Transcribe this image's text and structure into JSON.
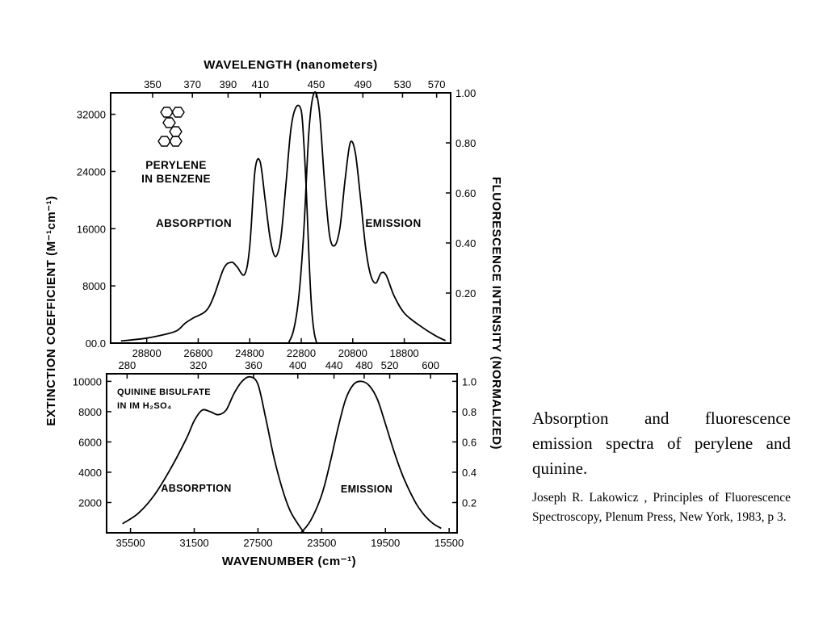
{
  "caption": {
    "text": "Absorption and fluorescence emission spectra of perylene and quinine.",
    "citation": "Joseph R. Lakowicz , Principles of Fluorescence Spectroscopy, Plenum Press, New York, 1983, p 3."
  },
  "figure": {
    "left_axis_title": "EXTINCTION COEFFICIENT (M⁻¹cm⁻¹)",
    "right_axis_title": "FLUORESCENCE INTENSITY (NORMALIZED)",
    "top_axis_title": "WAVELENGTH (nanometers)",
    "bottom_axis_title": "WAVENUMBER (cm⁻¹)"
  },
  "chart_data": [
    {
      "id": "perylene",
      "type": "line",
      "label_lines": [
        "PERYLENE",
        "IN BENZENE"
      ],
      "molecule_icon": "perylene-structure-icon",
      "x_unit": "wavenumber (cm-1)",
      "xlim": [
        30200,
        17000
      ],
      "x_reversed": true,
      "x_ticks": [
        "28800",
        "26800",
        "24800",
        "22800",
        "20800",
        "18800"
      ],
      "ylim": [
        0,
        35000
      ],
      "y_ticks": [
        "00.0",
        "8000",
        "16000",
        "24000",
        "32000"
      ],
      "y2lim": [
        0,
        1.0
      ],
      "y2_ticks": [
        "0.20",
        "0.40",
        "0.60",
        "0.80",
        "1.00"
      ],
      "wavelength_ticks": [
        "350",
        "370",
        "390",
        "410",
        "450",
        "490",
        "530",
        "570"
      ],
      "series": [
        {
          "name": "ABSORPTION",
          "axis": "left",
          "x": [
            29800,
            28800,
            28000,
            27600,
            27300,
            27000,
            26500,
            26200,
            25800,
            25500,
            25300,
            25000,
            24800,
            24600,
            24400,
            24200,
            24000,
            23800,
            23600,
            23400,
            23200,
            23000,
            22800,
            22700,
            22600,
            22500,
            22400,
            22300,
            22200
          ],
          "y": [
            300,
            700,
            1300,
            1800,
            2800,
            3500,
            4500,
            6500,
            10500,
            11300,
            10700,
            9600,
            13500,
            24000,
            25400,
            20000,
            14500,
            12100,
            14500,
            22000,
            30000,
            33000,
            32500,
            28000,
            21000,
            12000,
            5000,
            1500,
            0
          ]
        },
        {
          "name": "EMISSION",
          "axis": "right",
          "x": [
            23300,
            23100,
            22900,
            22700,
            22500,
            22300,
            22100,
            21900,
            21700,
            21500,
            21300,
            21100,
            20900,
            20700,
            20500,
            20300,
            20100,
            19900,
            19700,
            19500,
            19200,
            18800,
            18200,
            17600,
            17200
          ],
          "y": [
            0,
            0.05,
            0.18,
            0.45,
            0.85,
            1.0,
            0.93,
            0.65,
            0.43,
            0.39,
            0.46,
            0.65,
            0.8,
            0.76,
            0.58,
            0.38,
            0.27,
            0.24,
            0.28,
            0.27,
            0.19,
            0.12,
            0.07,
            0.03,
            0.01
          ]
        }
      ]
    },
    {
      "id": "quinine",
      "type": "line",
      "label_lines": [
        "QUININE BISULFATE",
        "IN IM H₂SO₄"
      ],
      "x_unit": "wavenumber (cm-1)",
      "xlim": [
        37000,
        15000
      ],
      "x_reversed": true,
      "x_ticks": [
        "35500",
        "31500",
        "27500",
        "23500",
        "19500",
        "15500"
      ],
      "ylim": [
        0,
        10500
      ],
      "y_ticks": [
        "2000",
        "4000",
        "6000",
        "8000",
        "10000"
      ],
      "y2lim": [
        0,
        1.05
      ],
      "y2_ticks": [
        "0.2",
        "0.4",
        "0.6",
        "0.8",
        "1.0"
      ],
      "wavelength_ticks": [
        "280",
        "320",
        "360",
        "400",
        "440",
        "480",
        "520",
        "600"
      ],
      "series": [
        {
          "name": "ABSORPTION",
          "axis": "left",
          "x": [
            36000,
            35000,
            34000,
            33000,
            32000,
            31500,
            31000,
            30500,
            30000,
            29500,
            29000,
            28500,
            28000,
            27500,
            27000,
            26500,
            26000,
            25500,
            25000,
            24600
          ],
          "y": [
            600,
            1300,
            2500,
            4200,
            6200,
            7400,
            8100,
            8000,
            7800,
            8100,
            9200,
            10000,
            10300,
            9800,
            7500,
            5000,
            3000,
            1500,
            600,
            0
          ]
        },
        {
          "name": "EMISSION",
          "axis": "right",
          "x": [
            24800,
            24200,
            23500,
            23000,
            22500,
            22000,
            21500,
            21000,
            20500,
            20000,
            19500,
            19000,
            18500,
            18000,
            17500,
            17000,
            16500,
            16000
          ],
          "y": [
            0,
            0.08,
            0.25,
            0.45,
            0.68,
            0.88,
            0.98,
            1.0,
            0.97,
            0.88,
            0.72,
            0.55,
            0.4,
            0.28,
            0.18,
            0.11,
            0.06,
            0.03
          ]
        }
      ]
    }
  ]
}
